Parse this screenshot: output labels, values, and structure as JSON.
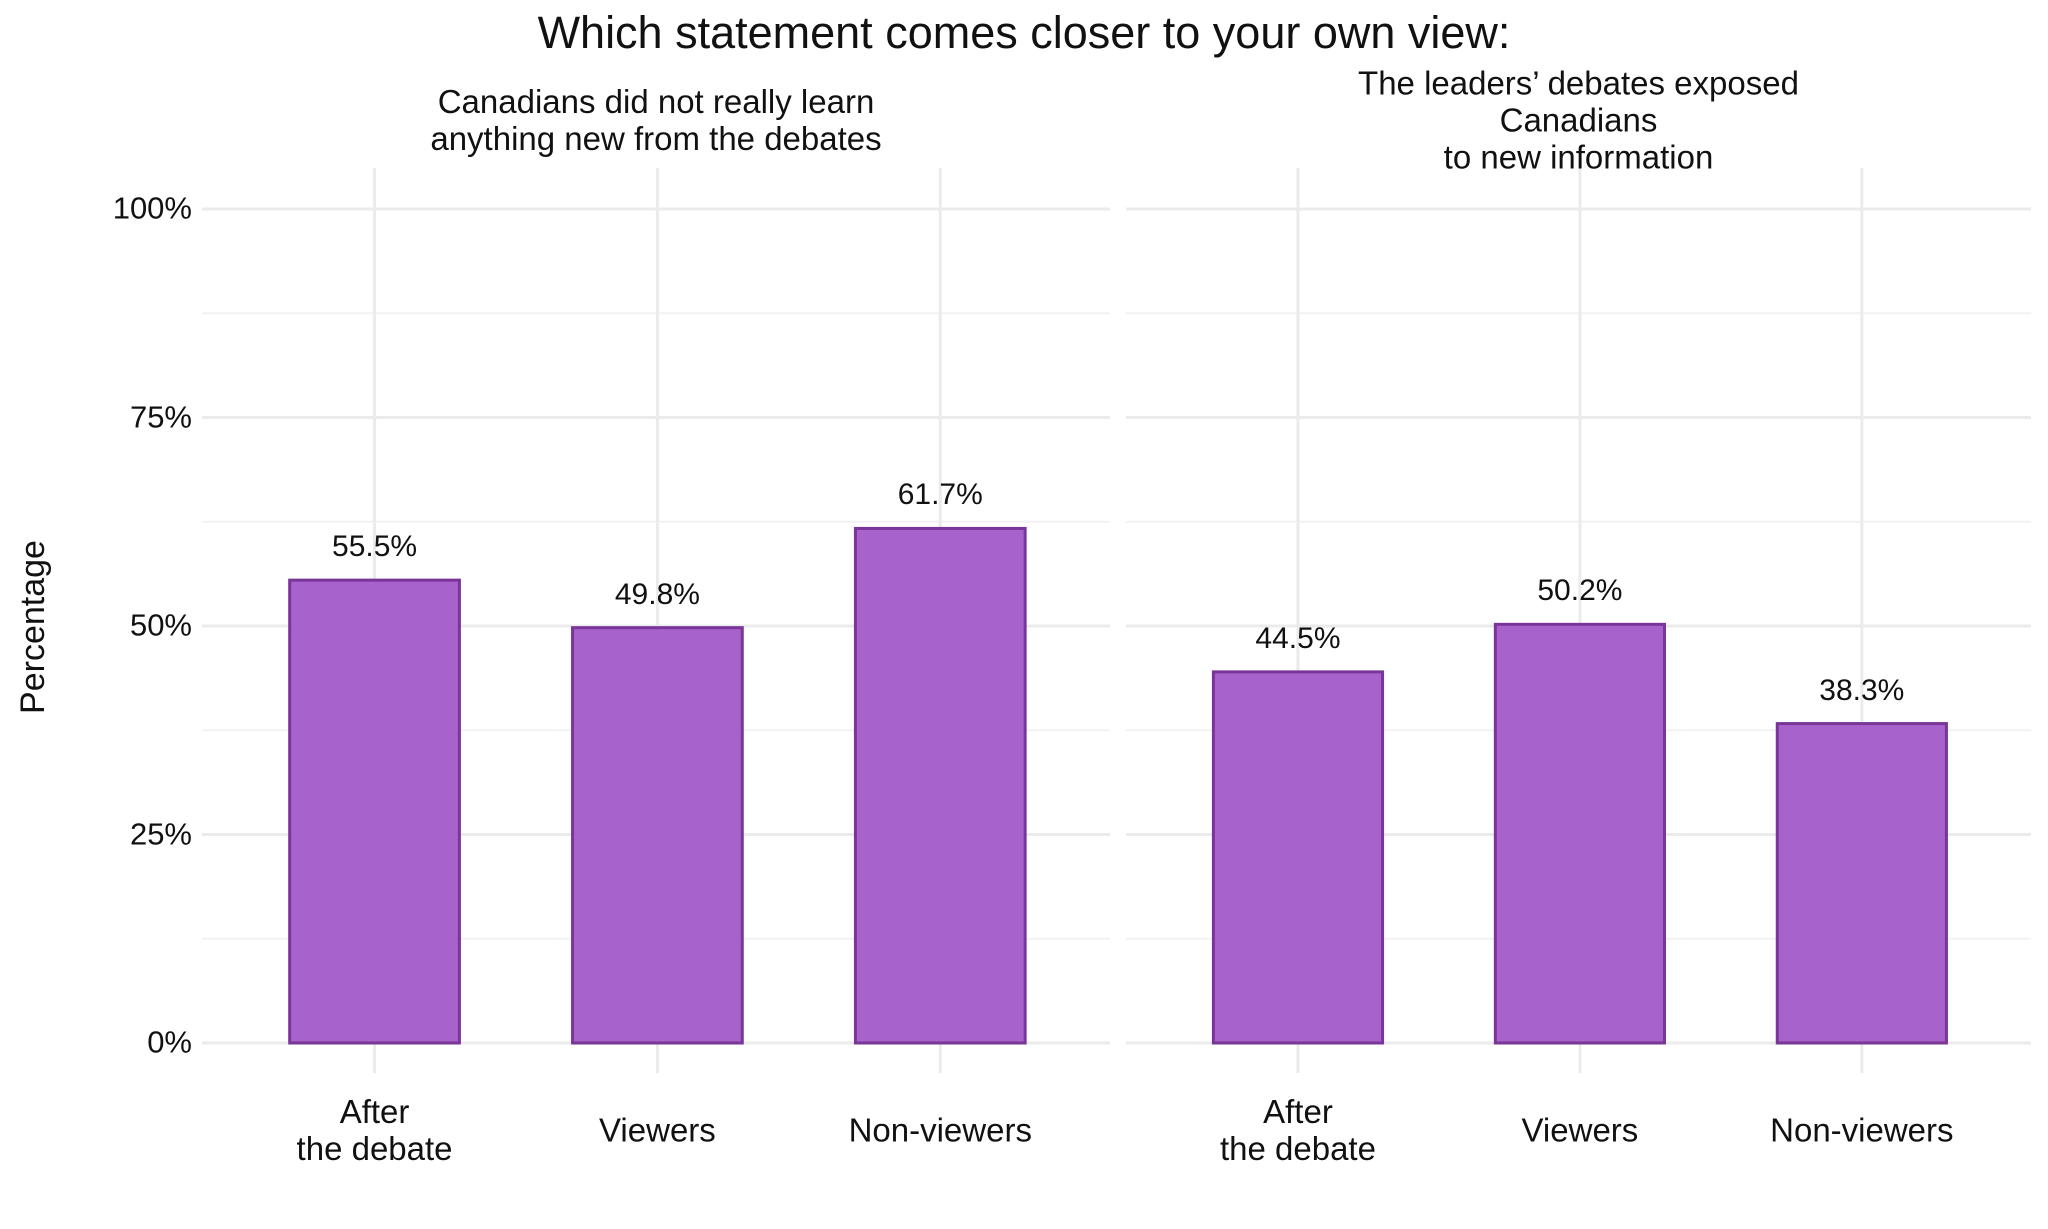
{
  "title": "Which statement comes closer to your own view:",
  "y_label": "Percentage",
  "chart_data": [
    {
      "type": "bar",
      "title": "Canadians did not really learn\nanything new from the debates",
      "categories": [
        "After\nthe debate",
        "Viewers",
        "Non-viewers"
      ],
      "values": [
        55.5,
        49.8,
        61.7
      ],
      "value_labels": [
        "55.5%",
        "49.8%",
        "61.7%"
      ],
      "color": "#a862cc",
      "edge_color": "#7a3599",
      "ylim": [
        0,
        100
      ],
      "yticks": [
        {
          "value": 0,
          "label": "0%"
        },
        {
          "value": 25,
          "label": "25%"
        },
        {
          "value": 50,
          "label": "50%"
        },
        {
          "value": 75,
          "label": "75%"
        },
        {
          "value": 100,
          "label": "100%"
        }
      ],
      "minor_yticks": [
        12.5,
        37.5,
        62.5,
        87.5
      ],
      "grid": true
    },
    {
      "type": "bar",
      "title": "The leaders’ debates exposed Canadians\nto new information",
      "categories": [
        "After\nthe debate",
        "Viewers",
        "Non-viewers"
      ],
      "values": [
        44.5,
        50.2,
        38.3
      ],
      "value_labels": [
        "44.5%",
        "50.2%",
        "38.3%"
      ],
      "color": "#a862cc",
      "edge_color": "#7a3599",
      "ylim": [
        0,
        100
      ],
      "yticks": [
        {
          "value": 0,
          "label": "0%"
        },
        {
          "value": 25,
          "label": "25%"
        },
        {
          "value": 50,
          "label": "50%"
        },
        {
          "value": 75,
          "label": "75%"
        },
        {
          "value": 100,
          "label": "100%"
        }
      ],
      "minor_yticks": [
        12.5,
        37.5,
        62.5,
        87.5
      ],
      "grid": true
    }
  ]
}
